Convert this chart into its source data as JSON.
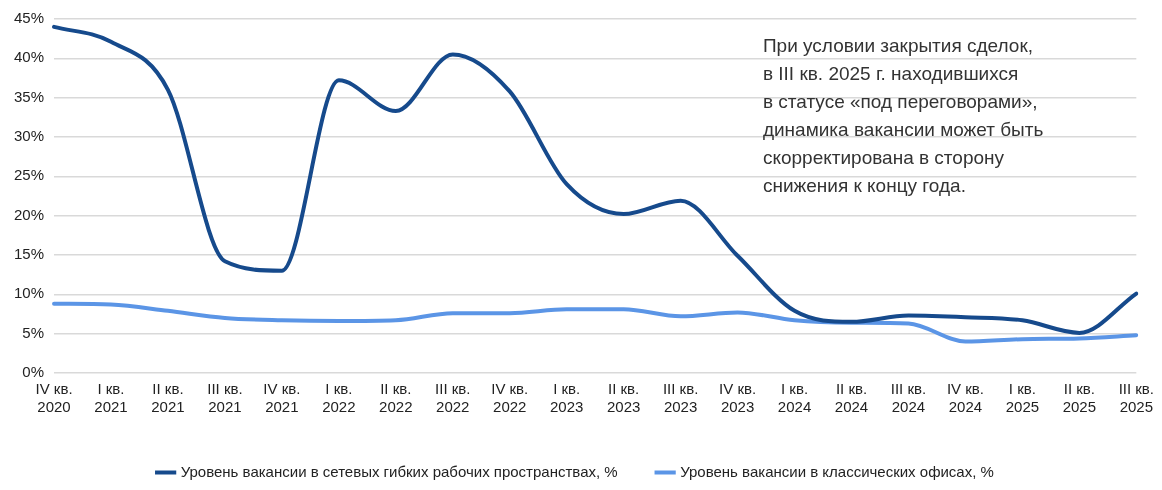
{
  "chart_data": {
    "type": "line",
    "categories": [
      "IV кв. 2020",
      "I кв. 2021",
      "II кв. 2021",
      "III кв. 2021",
      "IV кв. 2021",
      "I кв. 2022",
      "II кв. 2022",
      "III кв. 2022",
      "IV кв. 2022",
      "I кв. 2023",
      "II кв. 2023",
      "III кв. 2023",
      "IV кв. 2023",
      "I кв. 2024",
      "II кв. 2024",
      "III кв. 2024",
      "IV кв. 2024",
      "I кв. 2025",
      "II кв. 2025",
      "III кв. 2025"
    ],
    "series": [
      {
        "name": "Уровень вакансии в сетевых гибких рабочих пространствах, %",
        "color": "#164a8c",
        "values": [
          44,
          42.1,
          36,
          14.2,
          13,
          37.2,
          33.3,
          40.5,
          35.8,
          24,
          20.2,
          21.9,
          14.9,
          7.9,
          6.5,
          7.3,
          7.1,
          6.7,
          5.1,
          10.1
        ]
      },
      {
        "name": "Уровень вакансии в классических офисах, %",
        "color": "#5b95e6",
        "values": [
          8.8,
          8.7,
          7.9,
          7,
          6.7,
          6.6,
          6.7,
          7.6,
          7.6,
          8.1,
          8.1,
          7.2,
          7.7,
          6.7,
          6.4,
          6.3,
          4,
          4.3,
          4.4,
          4.8
        ]
      }
    ],
    "ylim": [
      0,
      45
    ],
    "yticks": [
      {
        "value": 0,
        "label": "0%"
      },
      {
        "value": 5,
        "label": "5%"
      },
      {
        "value": 10,
        "label": "10%"
      },
      {
        "value": 15,
        "label": "15%"
      },
      {
        "value": 20,
        "label": "20%"
      },
      {
        "value": 25,
        "label": "25%"
      },
      {
        "value": 30,
        "label": "30%"
      },
      {
        "value": 35,
        "label": "35%"
      },
      {
        "value": 40,
        "label": "40%"
      },
      {
        "value": 45,
        "label": "45%"
      }
    ],
    "grid": "y",
    "legend": "bottom",
    "marker": "none",
    "line_style": "solid",
    "annotations": [
      "При условии закрытия сделок,\nв III кв. 2025 г. находившихся\nв статусе «под переговорами»,\nдинамика вакансии может быть\nскорректирована в сторону\nснижения к концу года."
    ]
  }
}
